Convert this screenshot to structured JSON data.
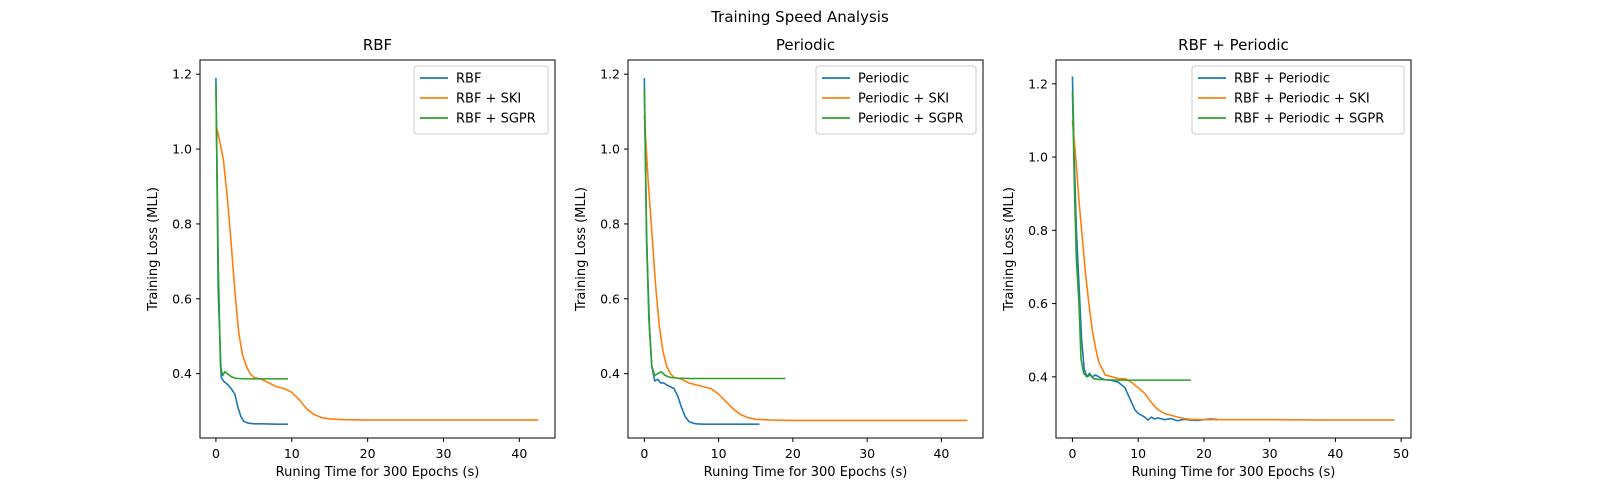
{
  "figure": {
    "suptitle": "Training Speed Analysis"
  },
  "chart_data": [
    {
      "type": "line",
      "title": "RBF",
      "xlabel": "Runing Time for 300 Epochs (s)",
      "ylabel": "Training Loss (MLL)",
      "xlim": [
        -2.1,
        44.7
      ],
      "ylim": [
        0.228,
        1.238
      ],
      "xticks": [
        0,
        10,
        20,
        30,
        40
      ],
      "yticks": [
        0.4,
        0.6,
        0.8,
        1.0,
        1.2
      ],
      "ytick_labels": [
        "0.4",
        "0.6",
        "0.8",
        "1.0",
        "1.2"
      ],
      "legend": "top-right",
      "series": [
        {
          "name": "RBF",
          "color": "#1f77b4",
          "x": [
            0,
            0.3,
            0.7,
            1.0,
            1.3,
            1.6,
            2.0,
            2.5,
            2.9,
            3.3,
            3.7,
            4.2,
            5.0,
            6.0,
            8.0,
            9.5
          ],
          "y": [
            1.19,
            0.62,
            0.39,
            0.38,
            0.375,
            0.37,
            0.36,
            0.345,
            0.31,
            0.285,
            0.272,
            0.268,
            0.266,
            0.266,
            0.265,
            0.265
          ]
        },
        {
          "name": "RBF + SKI",
          "color": "#ff7f0e",
          "x": [
            0,
            0.2,
            0.5,
            1.0,
            1.5,
            2.0,
            2.5,
            3.0,
            3.5,
            4.0,
            4.5,
            5.0,
            6.0,
            7.0,
            8.0,
            9.0,
            10.0,
            11.0,
            12.0,
            13.0,
            14.0,
            15.0,
            17.0,
            20.0,
            25.0,
            30.0,
            35.0,
            42.5
          ],
          "y": [
            1.06,
            1.05,
            1.02,
            0.97,
            0.87,
            0.75,
            0.62,
            0.51,
            0.45,
            0.42,
            0.4,
            0.39,
            0.385,
            0.375,
            0.365,
            0.36,
            0.35,
            0.33,
            0.305,
            0.29,
            0.282,
            0.279,
            0.277,
            0.276,
            0.276,
            0.276,
            0.276,
            0.276
          ]
        },
        {
          "name": "RBF + SGPR",
          "color": "#2ca02c",
          "x": [
            0,
            0.3,
            0.6,
            0.9,
            1.2,
            1.5,
            2.0,
            2.5,
            3.0,
            4.0,
            6.0,
            9.5
          ],
          "y": [
            1.17,
            0.7,
            0.42,
            0.395,
            0.405,
            0.4,
            0.392,
            0.388,
            0.387,
            0.386,
            0.386,
            0.386
          ]
        }
      ]
    },
    {
      "type": "line",
      "title": "Periodic",
      "xlabel": "Runing Time for 300 Epochs (s)",
      "ylabel": "Training Loss (MLL)",
      "xlim": [
        -2.2,
        45.6
      ],
      "ylim": [
        0.228,
        1.238
      ],
      "xticks": [
        0,
        10,
        20,
        30,
        40
      ],
      "yticks": [
        0.4,
        0.6,
        0.8,
        1.0,
        1.2
      ],
      "ytick_labels": [
        "0.4",
        "0.6",
        "0.8",
        "1.0",
        "1.2"
      ],
      "legend": "top-right",
      "series": [
        {
          "name": "Periodic",
          "color": "#1f77b4",
          "x": [
            0,
            0.3,
            0.7,
            1.0,
            1.4,
            1.8,
            2.2,
            2.6,
            3.0,
            3.5,
            4.0,
            4.5,
            5.0,
            5.5,
            6.0,
            6.5,
            7.0,
            8.0,
            10.0,
            15.5
          ],
          "y": [
            1.19,
            0.75,
            0.52,
            0.42,
            0.38,
            0.385,
            0.375,
            0.375,
            0.37,
            0.365,
            0.36,
            0.34,
            0.31,
            0.285,
            0.272,
            0.268,
            0.266,
            0.265,
            0.265,
            0.265
          ]
        },
        {
          "name": "Periodic + SKI",
          "color": "#ff7f0e",
          "x": [
            0,
            0.5,
            1.0,
            1.5,
            2.0,
            2.5,
            3.0,
            3.5,
            4.0,
            5.0,
            6.0,
            7.0,
            8.0,
            9.0,
            10.0,
            11.0,
            12.0,
            13.0,
            14.0,
            15.0,
            17.0,
            20.0,
            30.0,
            43.5
          ],
          "y": [
            1.09,
            0.92,
            0.78,
            0.64,
            0.53,
            0.46,
            0.42,
            0.4,
            0.39,
            0.385,
            0.375,
            0.37,
            0.365,
            0.36,
            0.345,
            0.325,
            0.305,
            0.29,
            0.282,
            0.278,
            0.276,
            0.275,
            0.275,
            0.275
          ]
        },
        {
          "name": "Periodic + SGPR",
          "color": "#2ca02c",
          "x": [
            0,
            0.3,
            0.6,
            1.0,
            1.4,
            1.8,
            2.3,
            2.8,
            3.5,
            4.5,
            6.0,
            10.0,
            19.0
          ],
          "y": [
            1.16,
            0.78,
            0.55,
            0.42,
            0.395,
            0.4,
            0.405,
            0.395,
            0.39,
            0.388,
            0.387,
            0.387,
            0.387
          ]
        }
      ]
    },
    {
      "type": "line",
      "title": "RBF + Periodic",
      "xlabel": "Runing Time for 300 Epochs (s)",
      "ylabel": "Training Loss (MLL)",
      "xlim": [
        -2.5,
        51.5
      ],
      "ylim": [
        0.233,
        1.265
      ],
      "xticks": [
        0,
        10,
        20,
        30,
        40,
        50
      ],
      "yticks": [
        0.4,
        0.6,
        0.8,
        1.0,
        1.2
      ],
      "ytick_labels": [
        "0.4",
        "0.6",
        "0.8",
        "1.0",
        "1.2"
      ],
      "legend": "top-right",
      "series": [
        {
          "name": "RBF + Periodic",
          "color": "#1f77b4",
          "x": [
            0,
            0.3,
            0.6,
            1.0,
            1.4,
            1.8,
            2.2,
            2.6,
            3.0,
            3.5,
            4.0,
            4.5,
            5.0,
            6.0,
            7.0,
            8.0,
            8.5,
            9.0,
            9.5,
            10.0,
            11.0,
            11.5,
            12.0,
            12.5,
            13.0,
            14.0,
            15.0,
            16.0,
            17.0,
            18.0,
            19.0,
            20.0,
            21.0,
            22.0
          ],
          "y": [
            1.22,
            0.98,
            0.8,
            0.65,
            0.5,
            0.42,
            0.4,
            0.41,
            0.4,
            0.405,
            0.4,
            0.395,
            0.392,
            0.39,
            0.385,
            0.37,
            0.35,
            0.33,
            0.31,
            0.3,
            0.29,
            0.282,
            0.29,
            0.285,
            0.288,
            0.283,
            0.286,
            0.28,
            0.284,
            0.282,
            0.281,
            0.283,
            0.285,
            0.284
          ]
        },
        {
          "name": "RBF + Periodic + SKI",
          "color": "#ff7f0e",
          "x": [
            0,
            0.5,
            1.0,
            1.5,
            2.0,
            2.5,
            3.0,
            3.5,
            4.0,
            5.0,
            6.0,
            7.0,
            8.0,
            9.0,
            10.0,
            11.0,
            12.0,
            13.0,
            14.0,
            15.0,
            16.0,
            17.0,
            18.0,
            20.0,
            25.0,
            30.0,
            40.0,
            49.0
          ],
          "y": [
            1.1,
            1.0,
            0.88,
            0.78,
            0.68,
            0.6,
            0.53,
            0.48,
            0.44,
            0.405,
            0.4,
            0.395,
            0.395,
            0.385,
            0.37,
            0.355,
            0.33,
            0.31,
            0.3,
            0.295,
            0.29,
            0.286,
            0.284,
            0.283,
            0.283,
            0.283,
            0.282,
            0.282
          ]
        },
        {
          "name": "RBF + Periodic + SGPR",
          "color": "#2ca02c",
          "x": [
            0,
            0.3,
            0.6,
            1.0,
            1.3,
            1.7,
            2.2,
            2.7,
            3.2,
            4.0,
            5.0,
            7.0,
            10.0,
            14.0,
            18.0
          ],
          "y": [
            1.18,
            0.92,
            0.72,
            0.6,
            0.45,
            0.41,
            0.4,
            0.405,
            0.395,
            0.393,
            0.392,
            0.391,
            0.391,
            0.391,
            0.391
          ]
        }
      ]
    }
  ]
}
